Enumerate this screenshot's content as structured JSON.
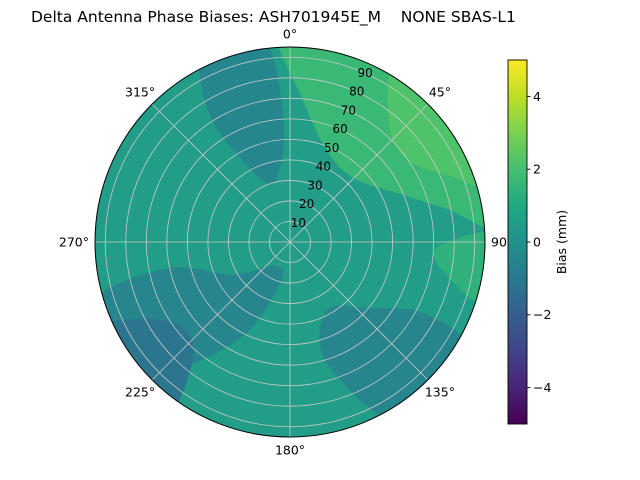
{
  "title": "Delta Antenna Phase Biases: ASH701945E_M    NONE SBAS-L1",
  "chart_data": {
    "type": "heatmap",
    "subtype": "polar-skyplot-contour",
    "title": "Delta Antenna Phase Biases: ASH701945E_M    NONE SBAS-L1",
    "angular_ticks": [
      {
        "deg": 0,
        "label": "0°"
      },
      {
        "deg": 45,
        "label": "45°"
      },
      {
        "deg": 90,
        "label": "90°"
      },
      {
        "deg": 135,
        "label": "135°"
      },
      {
        "deg": 180,
        "label": "180°"
      },
      {
        "deg": 225,
        "label": "225°"
      },
      {
        "deg": 270,
        "label": "270°"
      },
      {
        "deg": 315,
        "label": "315°"
      }
    ],
    "radial_ticks": [
      10,
      20,
      30,
      40,
      50,
      60,
      70,
      80,
      90
    ],
    "radial_tick_angle_deg": 24,
    "rmax": 95,
    "grid_color": "#c9c9c9",
    "background_bias": 0.5,
    "regions": [
      {
        "name": "dark-lobe-bottom-left",
        "bias": -0.5,
        "points": [
          [
            192,
            18
          ],
          [
            205,
            48
          ],
          [
            218,
            75
          ],
          [
            228,
            104
          ],
          [
            252,
            104
          ],
          [
            258,
            62
          ],
          [
            240,
            32
          ],
          [
            215,
            14
          ]
        ]
      },
      {
        "name": "dark-core-bottom-left",
        "bias": -1.1,
        "points": [
          [
            215,
            104
          ],
          [
            222,
            70
          ],
          [
            238,
            72
          ],
          [
            246,
            104
          ],
          [
            230,
            104
          ]
        ]
      },
      {
        "name": "dark-lobe-bottom-right",
        "bias": -0.5,
        "points": [
          [
            122,
            104
          ],
          [
            148,
            104
          ],
          [
            163,
            62
          ],
          [
            152,
            38
          ],
          [
            130,
            50
          ],
          [
            118,
            75
          ]
        ]
      },
      {
        "name": "dark-lobe-top",
        "bias": -0.4,
        "points": [
          [
            336,
            104
          ],
          [
            352,
            104
          ],
          [
            357,
            60
          ],
          [
            345,
            30
          ],
          [
            330,
            45
          ],
          [
            328,
            75
          ]
        ]
      },
      {
        "name": "green-top-right",
        "bias": 1.7,
        "points": [
          [
            357,
            104
          ],
          [
            5,
            70
          ],
          [
            22,
            48
          ],
          [
            45,
            44
          ],
          [
            66,
            58
          ],
          [
            78,
            78
          ],
          [
            86,
            104
          ],
          [
            55,
            104
          ],
          [
            20,
            104
          ]
        ]
      },
      {
        "name": "green-core-top-right",
        "bias": 2.2,
        "points": [
          [
            30,
            104
          ],
          [
            40,
            75
          ],
          [
            55,
            70
          ],
          [
            68,
            85
          ],
          [
            75,
            104
          ],
          [
            50,
            104
          ]
        ]
      },
      {
        "name": "green-right-rim",
        "bias": 1.4,
        "points": [
          [
            88,
            104
          ],
          [
            92,
            72
          ],
          [
            102,
            78
          ],
          [
            108,
            104
          ]
        ]
      }
    ],
    "colorbar": {
      "label": "Bias (mm)",
      "vmin": -5,
      "vmax": 5,
      "ticks": [
        -4,
        -2,
        0,
        2,
        4
      ],
      "tick_labels": [
        "−4",
        "−2",
        "0",
        "2",
        "4"
      ],
      "colormap": "viridis",
      "stops": [
        [
          0,
          "#440154"
        ],
        [
          0.1,
          "#482475"
        ],
        [
          0.2,
          "#414487"
        ],
        [
          0.3,
          "#355f8d"
        ],
        [
          0.4,
          "#2a788e"
        ],
        [
          0.5,
          "#21918c"
        ],
        [
          0.6,
          "#22a884"
        ],
        [
          0.7,
          "#44bf70"
        ],
        [
          0.8,
          "#7ad151"
        ],
        [
          0.9,
          "#bddf26"
        ],
        [
          1,
          "#fde725"
        ]
      ]
    }
  }
}
